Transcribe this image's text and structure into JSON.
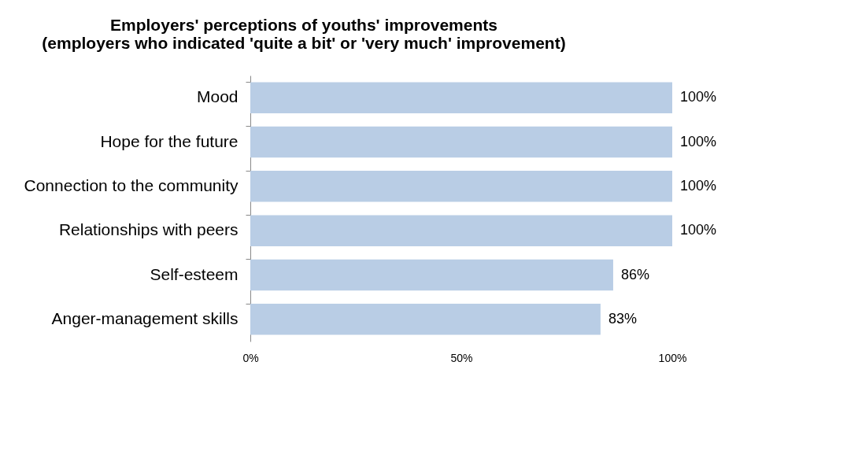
{
  "chart_data": {
    "type": "bar",
    "orientation": "horizontal",
    "title": [
      "Employers' perceptions of youths' improvements",
      "(employers who indicated 'quite a bit' or 'very much' improvement)"
    ],
    "categories": [
      "Mood",
      "Hope for the future",
      "Connection to the community",
      "Relationships with peers",
      "Self-esteem",
      "Anger-management skills"
    ],
    "values": [
      100,
      100,
      100,
      100,
      86,
      83
    ],
    "value_labels": [
      "100%",
      "100%",
      "100%",
      "100%",
      "86%",
      "83%"
    ],
    "color": "#b9cde5",
    "xlim": [
      0,
      100
    ],
    "xticks": [
      {
        "value": 0,
        "label": "0%"
      },
      {
        "value": 50,
        "label": "50%"
      },
      {
        "value": 100,
        "label": "100%"
      }
    ],
    "grid": false
  }
}
